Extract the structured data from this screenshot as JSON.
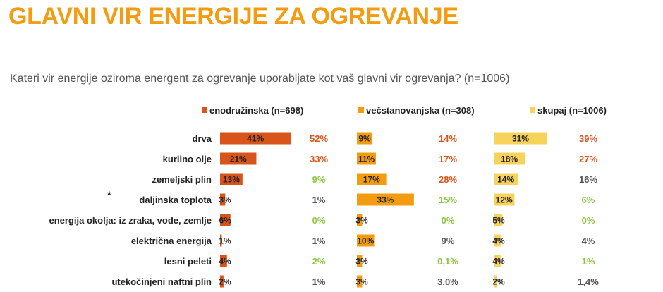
{
  "page": {
    "title": "GLAVNI VIR ENERGIJE ZA OGREVANJE",
    "question": "Kateri vir energije oziroma energent za ogrevanje uporabljate kot vaš glavni vir ogrevanja? (n=1006)"
  },
  "chart_data": {
    "type": "bar",
    "orientation": "horizontal",
    "marker": "*",
    "marked_category_index": 3,
    "categories": [
      "drva",
      "kurilno olje",
      "zemeljski plin",
      "daljinska toplota",
      "energija okolja: iz zraka, vode, zemlje",
      "električna energija",
      "lesni peleti",
      "utekočinjeni naftni plin"
    ],
    "series": [
      {
        "name": "enodružinska (n=698)",
        "color": "#D9541B",
        "values": [
          41,
          21,
          13,
          3,
          6,
          1,
          4,
          2
        ],
        "labels": [
          "41%",
          "21%",
          "13%",
          "3%",
          "6%",
          "1%",
          "4%",
          "2%"
        ],
        "compare_labels": [
          "52%",
          "33%",
          "9%",
          "1%",
          "0%",
          "1%",
          "2%",
          "1%"
        ],
        "compare_colors": [
          "#D9541B",
          "#D9541B",
          "#8DC63F",
          "#555555",
          "#8DC63F",
          "#555555",
          "#8DC63F",
          "#555555"
        ]
      },
      {
        "name": "večstanovanjska (n=308)",
        "color": "#F39C12",
        "values": [
          9,
          11,
          17,
          33,
          3,
          10,
          3,
          3
        ],
        "labels": [
          "9%",
          "11%",
          "17%",
          "33%",
          "3%",
          "10%",
          "3%",
          "3%"
        ],
        "compare_labels": [
          "14%",
          "17%",
          "28%",
          "15%",
          "0%",
          "9%",
          "0,1%",
          "3,0%"
        ],
        "compare_colors": [
          "#D9541B",
          "#D9541B",
          "#D9541B",
          "#8DC63F",
          "#8DC63F",
          "#555555",
          "#8DC63F",
          "#555555"
        ]
      },
      {
        "name": "skupaj (n=1006)",
        "color": "#F7D35B",
        "values": [
          31,
          18,
          14,
          12,
          5,
          4,
          4,
          2
        ],
        "labels": [
          "31%",
          "18%",
          "14%",
          "12%",
          "5%",
          "4%",
          "4%",
          "2%"
        ],
        "compare_labels": [
          "39%",
          "27%",
          "16%",
          "6%",
          "0%",
          "4%",
          "1%",
          "1,4%"
        ],
        "compare_colors": [
          "#D9541B",
          "#D9541B",
          "#555555",
          "#8DC63F",
          "#8DC63F",
          "#555555",
          "#8DC63F",
          "#555555"
        ]
      }
    ]
  }
}
